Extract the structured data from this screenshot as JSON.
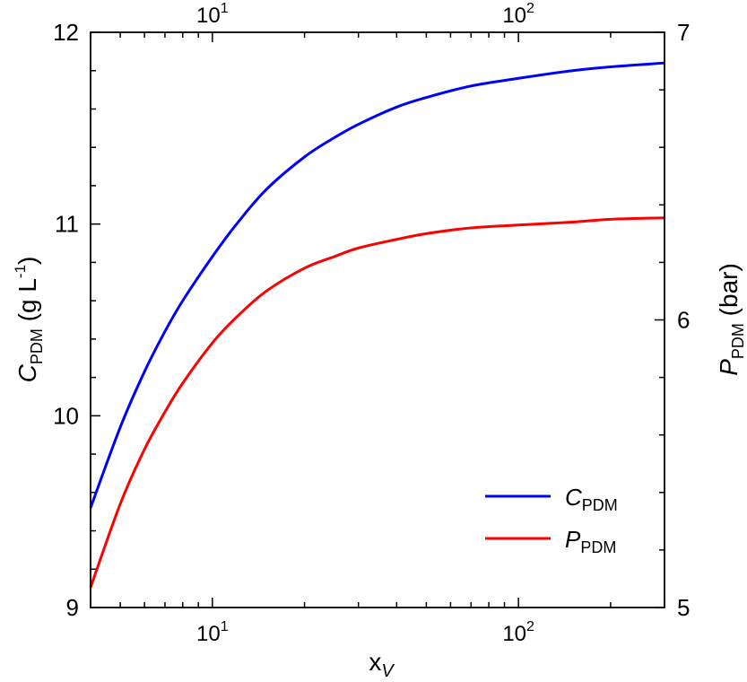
{
  "chart_data": {
    "type": "line",
    "xscale": "log",
    "xlim": [
      4,
      300
    ],
    "ylim_left": [
      9,
      12
    ],
    "ylim_right": [
      5,
      7
    ],
    "xlabel": "x",
    "xlabel_sub": "V",
    "ylabel_left": "C",
    "ylabel_left_sub": "PDM",
    "ylabel_left_unit_open": " (g L",
    "ylabel_left_unit_sup": "-1",
    "ylabel_left_unit_close": ")",
    "ylabel_right": "P",
    "ylabel_right_sub": "PDM",
    "ylabel_right_unit": " (bar)",
    "x_ticks_bottom": [
      {
        "value": 10,
        "base": "10",
        "exp": "1"
      },
      {
        "value": 100,
        "base": "10",
        "exp": "2"
      }
    ],
    "x_ticks_top": [
      {
        "value": 10,
        "base": "10",
        "exp": "1"
      },
      {
        "value": 100,
        "base": "10",
        "exp": "2"
      }
    ],
    "y_ticks_left": [
      {
        "value": 9,
        "label": "9"
      },
      {
        "value": 10,
        "label": "10"
      },
      {
        "value": 11,
        "label": "11"
      },
      {
        "value": 12,
        "label": "12"
      }
    ],
    "y_ticks_right": [
      {
        "value": 5,
        "label": "5"
      },
      {
        "value": 6,
        "label": "6"
      },
      {
        "value": 7,
        "label": "7"
      }
    ],
    "grid": false,
    "legend_position": "bottom-right",
    "series": [
      {
        "name": "C",
        "name_sub": "PDM",
        "axis": "left",
        "color": "#0000ff",
        "x": [
          4,
          5,
          6,
          7,
          8,
          10,
          12,
          15,
          20,
          25,
          30,
          40,
          50,
          70,
          100,
          150,
          200,
          300
        ],
        "y": [
          9.52,
          9.94,
          10.23,
          10.44,
          10.6,
          10.83,
          11.0,
          11.18,
          11.35,
          11.45,
          11.52,
          11.61,
          11.66,
          11.72,
          11.76,
          11.8,
          11.82,
          11.84
        ]
      },
      {
        "name": "P",
        "name_sub": "PDM",
        "axis": "right",
        "color": "#ff0000",
        "x": [
          4,
          5,
          6,
          7,
          8,
          10,
          12,
          15,
          20,
          25,
          30,
          40,
          50,
          70,
          100,
          150,
          200,
          300
        ],
        "y": [
          5.07,
          5.36,
          5.55,
          5.68,
          5.78,
          5.92,
          6.01,
          6.1,
          6.18,
          6.22,
          6.25,
          6.28,
          6.3,
          6.32,
          6.33,
          6.34,
          6.35,
          6.355
        ]
      }
    ]
  }
}
